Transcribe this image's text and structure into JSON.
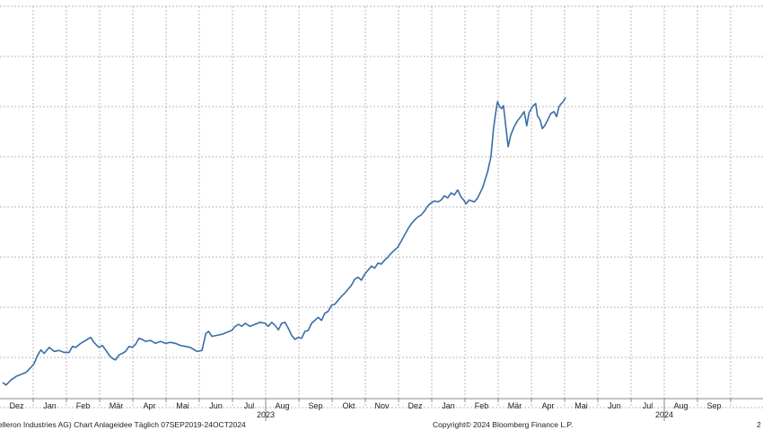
{
  "chart_data": {
    "type": "line",
    "title": "",
    "xlabel": "",
    "ylabel": "",
    "grid": true,
    "line_color": "#3a6ea5",
    "grid_color": "#b8b8b8",
    "month_labels": [
      "Dez",
      "Jan",
      "Feb",
      "Mär",
      "Apr",
      "Mai",
      "Jun",
      "Jul",
      "Aug",
      "Sep",
      "Okt",
      "Nov",
      "Dez",
      "Jan",
      "Feb",
      "Mär",
      "Apr",
      "Mai",
      "Jun",
      "Jul",
      "Aug",
      "Sep"
    ],
    "year_labels": [
      {
        "label": "2023",
        "after_month_index": 7
      },
      {
        "label": "2024",
        "after_month_index": 19
      }
    ],
    "ylim": [
      0,
      8
    ],
    "series": [
      {
        "values": [
          [
            0.0,
            0.5
          ],
          [
            0.1,
            0.45
          ],
          [
            0.25,
            0.55
          ],
          [
            0.4,
            0.62
          ],
          [
            0.55,
            0.66
          ],
          [
            0.7,
            0.7
          ],
          [
            0.85,
            0.8
          ],
          [
            0.95,
            0.88
          ],
          [
            1.05,
            1.04
          ],
          [
            1.15,
            1.15
          ],
          [
            1.25,
            1.08
          ],
          [
            1.4,
            1.2
          ],
          [
            1.55,
            1.12
          ],
          [
            1.7,
            1.14
          ],
          [
            1.85,
            1.1
          ],
          [
            2.0,
            1.1
          ],
          [
            2.1,
            1.22
          ],
          [
            2.2,
            1.2
          ],
          [
            2.35,
            1.28
          ],
          [
            2.5,
            1.34
          ],
          [
            2.65,
            1.4
          ],
          [
            2.75,
            1.3
          ],
          [
            2.82,
            1.25
          ],
          [
            2.9,
            1.2
          ],
          [
            3.0,
            1.24
          ],
          [
            3.1,
            1.15
          ],
          [
            3.2,
            1.05
          ],
          [
            3.3,
            0.98
          ],
          [
            3.4,
            0.95
          ],
          [
            3.5,
            1.05
          ],
          [
            3.6,
            1.08
          ],
          [
            3.7,
            1.12
          ],
          [
            3.8,
            1.22
          ],
          [
            3.9,
            1.2
          ],
          [
            4.0,
            1.26
          ],
          [
            4.1,
            1.38
          ],
          [
            4.2,
            1.36
          ],
          [
            4.3,
            1.32
          ],
          [
            4.45,
            1.34
          ],
          [
            4.6,
            1.28
          ],
          [
            4.75,
            1.32
          ],
          [
            4.9,
            1.28
          ],
          [
            5.05,
            1.3
          ],
          [
            5.2,
            1.28
          ],
          [
            5.35,
            1.24
          ],
          [
            5.5,
            1.22
          ],
          [
            5.65,
            1.2
          ],
          [
            5.75,
            1.16
          ],
          [
            5.85,
            1.12
          ],
          [
            6.0,
            1.14
          ],
          [
            6.05,
            1.28
          ],
          [
            6.12,
            1.48
          ],
          [
            6.2,
            1.52
          ],
          [
            6.3,
            1.42
          ],
          [
            6.45,
            1.44
          ],
          [
            6.6,
            1.46
          ],
          [
            6.75,
            1.5
          ],
          [
            6.9,
            1.54
          ],
          [
            7.0,
            1.62
          ],
          [
            7.1,
            1.66
          ],
          [
            7.2,
            1.62
          ],
          [
            7.3,
            1.68
          ],
          [
            7.45,
            1.62
          ],
          [
            7.6,
            1.66
          ],
          [
            7.75,
            1.7
          ],
          [
            7.9,
            1.68
          ],
          [
            8.0,
            1.62
          ],
          [
            8.1,
            1.7
          ],
          [
            8.2,
            1.64
          ],
          [
            8.3,
            1.55
          ],
          [
            8.4,
            1.68
          ],
          [
            8.5,
            1.7
          ],
          [
            8.6,
            1.58
          ],
          [
            8.7,
            1.44
          ],
          [
            8.8,
            1.36
          ],
          [
            8.9,
            1.4
          ],
          [
            9.0,
            1.38
          ],
          [
            9.1,
            1.52
          ],
          [
            9.2,
            1.54
          ],
          [
            9.3,
            1.68
          ],
          [
            9.4,
            1.74
          ],
          [
            9.5,
            1.8
          ],
          [
            9.6,
            1.74
          ],
          [
            9.7,
            1.88
          ],
          [
            9.8,
            1.92
          ],
          [
            9.9,
            2.04
          ],
          [
            10.0,
            2.06
          ],
          [
            10.1,
            2.14
          ],
          [
            10.2,
            2.22
          ],
          [
            10.3,
            2.28
          ],
          [
            10.4,
            2.36
          ],
          [
            10.5,
            2.44
          ],
          [
            10.6,
            2.56
          ],
          [
            10.7,
            2.6
          ],
          [
            10.8,
            2.54
          ],
          [
            10.9,
            2.66
          ],
          [
            11.0,
            2.74
          ],
          [
            11.1,
            2.82
          ],
          [
            11.2,
            2.78
          ],
          [
            11.3,
            2.88
          ],
          [
            11.4,
            2.86
          ],
          [
            11.5,
            2.94
          ],
          [
            11.6,
            3.0
          ],
          [
            11.7,
            3.08
          ],
          [
            11.8,
            3.14
          ],
          [
            11.9,
            3.2
          ],
          [
            12.0,
            3.32
          ],
          [
            12.1,
            3.44
          ],
          [
            12.2,
            3.56
          ],
          [
            12.3,
            3.66
          ],
          [
            12.4,
            3.74
          ],
          [
            12.5,
            3.8
          ],
          [
            12.6,
            3.84
          ],
          [
            12.7,
            3.92
          ],
          [
            12.8,
            4.02
          ],
          [
            12.9,
            4.08
          ],
          [
            13.0,
            4.12
          ],
          [
            13.1,
            4.1
          ],
          [
            13.2,
            4.14
          ],
          [
            13.3,
            4.22
          ],
          [
            13.4,
            4.18
          ],
          [
            13.5,
            4.28
          ],
          [
            13.6,
            4.24
          ],
          [
            13.7,
            4.34
          ],
          [
            13.8,
            4.2
          ],
          [
            13.9,
            4.12
          ],
          [
            13.95,
            4.06
          ],
          [
            14.05,
            4.14
          ],
          [
            14.2,
            4.1
          ],
          [
            14.3,
            4.18
          ],
          [
            14.45,
            4.38
          ],
          [
            14.6,
            4.7
          ],
          [
            14.7,
            5.0
          ],
          [
            14.78,
            5.56
          ],
          [
            14.85,
            5.9
          ],
          [
            14.9,
            6.1
          ],
          [
            14.96,
            6.0
          ],
          [
            15.02,
            5.96
          ],
          [
            15.08,
            6.02
          ],
          [
            15.15,
            5.6
          ],
          [
            15.22,
            5.2
          ],
          [
            15.3,
            5.44
          ],
          [
            15.4,
            5.6
          ],
          [
            15.5,
            5.72
          ],
          [
            15.6,
            5.8
          ],
          [
            15.7,
            5.9
          ],
          [
            15.78,
            5.62
          ],
          [
            15.85,
            5.88
          ],
          [
            15.95,
            6.0
          ],
          [
            16.05,
            6.06
          ],
          [
            16.1,
            5.82
          ],
          [
            16.18,
            5.74
          ],
          [
            16.25,
            5.56
          ],
          [
            16.32,
            5.62
          ],
          [
            16.4,
            5.72
          ],
          [
            16.5,
            5.86
          ],
          [
            16.6,
            5.9
          ],
          [
            16.68,
            5.8
          ],
          [
            16.75,
            6.0
          ],
          [
            16.82,
            6.06
          ],
          [
            16.88,
            6.1
          ],
          [
            16.95,
            6.18
          ]
        ]
      }
    ]
  },
  "footer": {
    "left": "elleron Industries AG) Chart Anlageidee  Täglich 07SEP2019-24OCT2024",
    "center": "Copyright© 2024 Bloomberg Finance L.P.",
    "right": "2"
  }
}
